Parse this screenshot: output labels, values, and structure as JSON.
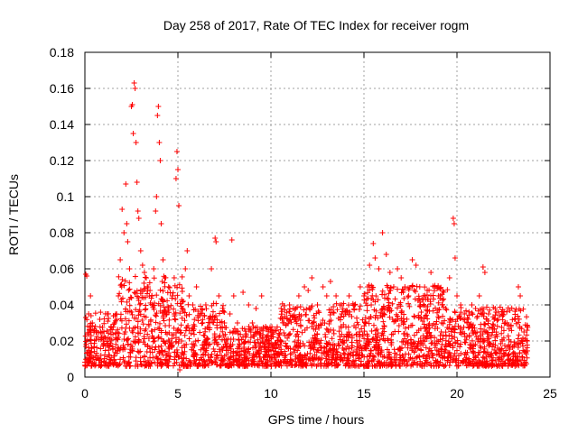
{
  "chart_data": {
    "type": "scatter",
    "title": "Day 258 of 2017, Rate Of TEC Index for receiver rogm",
    "xlabel": "GPS time / hours",
    "ylabel": "ROTI / TECUs",
    "xlim": [
      0,
      25
    ],
    "ylim": [
      0,
      0.18
    ],
    "x_ticks": [
      "0",
      "5",
      "10",
      "15",
      "20",
      "25"
    ],
    "y_ticks": [
      "0",
      "0.02",
      "0.04",
      "0.06",
      "0.08",
      "0.1",
      "0.12",
      "0.14",
      "0.16",
      "0.18"
    ],
    "grid": true,
    "marker": "+",
    "color": "#ff0000",
    "series": [
      {
        "values": [
          [
            0.05,
            0.057
          ],
          [
            0.1,
            0.056
          ],
          [
            0.3,
            0.045
          ],
          [
            0.2,
            0.035
          ],
          [
            0.4,
            0.03
          ],
          [
            0.6,
            0.025
          ],
          [
            0.8,
            0.032
          ],
          [
            1.0,
            0.02
          ],
          [
            1.2,
            0.035
          ],
          [
            1.4,
            0.028
          ],
          [
            1.6,
            0.03
          ],
          [
            1.8,
            0.045
          ],
          [
            1.9,
            0.065
          ],
          [
            2.0,
            0.093
          ],
          [
            2.1,
            0.08
          ],
          [
            2.2,
            0.107
          ],
          [
            2.25,
            0.085
          ],
          [
            2.3,
            0.075
          ],
          [
            2.4,
            0.06
          ],
          [
            2.5,
            0.15
          ],
          [
            2.55,
            0.151
          ],
          [
            2.6,
            0.135
          ],
          [
            2.65,
            0.163
          ],
          [
            2.7,
            0.16
          ],
          [
            2.75,
            0.13
          ],
          [
            2.8,
            0.108
          ],
          [
            2.85,
            0.092
          ],
          [
            2.9,
            0.088
          ],
          [
            3.0,
            0.07
          ],
          [
            3.1,
            0.062
          ],
          [
            3.2,
            0.058
          ],
          [
            3.3,
            0.055
          ],
          [
            3.4,
            0.05
          ],
          [
            3.5,
            0.048
          ],
          [
            3.6,
            0.045
          ],
          [
            3.7,
            0.06
          ],
          [
            3.8,
            0.092
          ],
          [
            3.85,
            0.1
          ],
          [
            3.9,
            0.145
          ],
          [
            3.95,
            0.15
          ],
          [
            4.0,
            0.13
          ],
          [
            4.05,
            0.12
          ],
          [
            4.1,
            0.085
          ],
          [
            4.2,
            0.065
          ],
          [
            4.3,
            0.055
          ],
          [
            4.5,
            0.05
          ],
          [
            4.7,
            0.045
          ],
          [
            4.8,
            0.035
          ],
          [
            4.9,
            0.11
          ],
          [
            4.95,
            0.125
          ],
          [
            5.0,
            0.115
          ],
          [
            5.05,
            0.095
          ],
          [
            5.1,
            0.004
          ],
          [
            5.2,
            0.02
          ],
          [
            5.4,
            0.06
          ],
          [
            5.5,
            0.07
          ],
          [
            5.6,
            0.045
          ],
          [
            5.8,
            0.04
          ],
          [
            6.0,
            0.05
          ],
          [
            6.2,
            0.035
          ],
          [
            6.5,
            0.04
          ],
          [
            6.8,
            0.06
          ],
          [
            7.0,
            0.077
          ],
          [
            7.05,
            0.075
          ],
          [
            7.2,
            0.045
          ],
          [
            7.5,
            0.03
          ],
          [
            7.8,
            0.035
          ],
          [
            7.9,
            0.076
          ],
          [
            8.0,
            0.045
          ],
          [
            8.2,
            0.03
          ],
          [
            8.5,
            0.047
          ],
          [
            8.8,
            0.04
          ],
          [
            9.0,
            0.03
          ],
          [
            9.2,
            0.038
          ],
          [
            9.5,
            0.045
          ],
          [
            9.8,
            0.02
          ],
          [
            10.0,
            0.015
          ],
          [
            10.2,
            0.018
          ],
          [
            10.5,
            0.02
          ],
          [
            10.7,
            0.03
          ],
          [
            11.0,
            0.04
          ],
          [
            11.2,
            0.038
          ],
          [
            11.5,
            0.045
          ],
          [
            11.8,
            0.05
          ],
          [
            12.0,
            0.048
          ],
          [
            12.2,
            0.055
          ],
          [
            12.5,
            0.04
          ],
          [
            12.8,
            0.05
          ],
          [
            13.0,
            0.045
          ],
          [
            13.2,
            0.053
          ],
          [
            13.5,
            0.045
          ],
          [
            13.8,
            0.04
          ],
          [
            14.0,
            0.035
          ],
          [
            14.2,
            0.045
          ],
          [
            14.5,
            0.04
          ],
          [
            14.8,
            0.05
          ],
          [
            15.0,
            0.045
          ],
          [
            15.2,
            0.05
          ],
          [
            15.3,
            0.062
          ],
          [
            15.5,
            0.074
          ],
          [
            15.6,
            0.066
          ],
          [
            15.8,
            0.06
          ],
          [
            16.0,
            0.08
          ],
          [
            16.2,
            0.068
          ],
          [
            16.4,
            0.058
          ],
          [
            16.6,
            0.05
          ],
          [
            16.8,
            0.06
          ],
          [
            17.0,
            0.055
          ],
          [
            17.2,
            0.05
          ],
          [
            17.4,
            0.045
          ],
          [
            17.6,
            0.065
          ],
          [
            17.8,
            0.062
          ],
          [
            18.0,
            0.05
          ],
          [
            18.2,
            0.045
          ],
          [
            18.4,
            0.048
          ],
          [
            18.6,
            0.058
          ],
          [
            18.8,
            0.05
          ],
          [
            19.0,
            0.045
          ],
          [
            19.2,
            0.04
          ],
          [
            19.4,
            0.038
          ],
          [
            19.6,
            0.055
          ],
          [
            19.8,
            0.088
          ],
          [
            19.85,
            0.085
          ],
          [
            19.9,
            0.066
          ],
          [
            20.0,
            0.045
          ],
          [
            20.2,
            0.04
          ],
          [
            20.4,
            0.035
          ],
          [
            20.6,
            0.032
          ],
          [
            20.8,
            0.04
          ],
          [
            21.0,
            0.038
          ],
          [
            21.2,
            0.045
          ],
          [
            21.4,
            0.061
          ],
          [
            21.5,
            0.058
          ],
          [
            21.7,
            0.035
          ],
          [
            22.0,
            0.032
          ],
          [
            22.3,
            0.034
          ],
          [
            22.6,
            0.03
          ],
          [
            22.9,
            0.028
          ],
          [
            23.1,
            0.032
          ],
          [
            23.3,
            0.05
          ],
          [
            23.4,
            0.045
          ],
          [
            23.6,
            0.025
          ]
        ]
      }
    ]
  }
}
